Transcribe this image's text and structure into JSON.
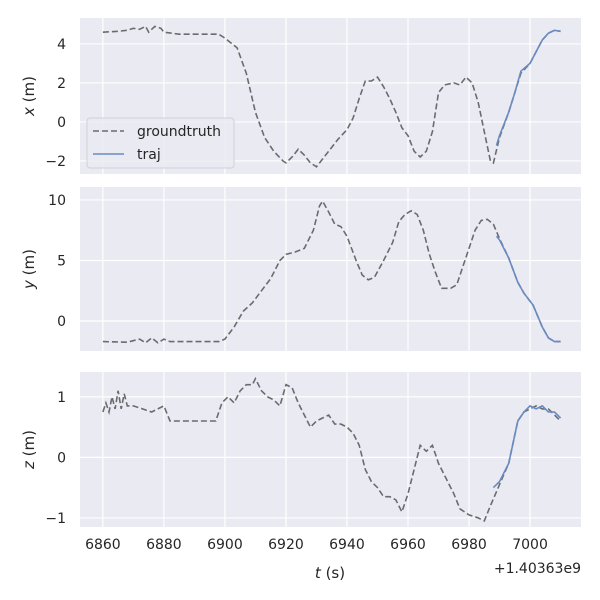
{
  "chart_data": {
    "type": "line",
    "x_offset_label": "+1.40363e9",
    "xlabel_var": "t",
    "xlabel_unit": " (s)",
    "xlim": [
      6852.5,
      7016.7
    ],
    "xticks": [
      6860,
      6880,
      6900,
      6920,
      6940,
      6960,
      6980,
      7000
    ],
    "grid": true,
    "legend": {
      "placement": "lower-left",
      "entries": [
        "groundtruth",
        "traj"
      ]
    },
    "colors": {
      "groundtruth": "#6b6b6f",
      "traj": "#6a8bc2",
      "background": "#eaeaf2",
      "grid": "#ffffff"
    },
    "panels": [
      {
        "ylabel_var": "x",
        "ylabel_unit": " (m)",
        "ylim": [
          -2.67,
          5.33
        ],
        "yticks": [
          -2,
          0,
          2,
          4
        ],
        "groundtruth": {
          "t": [
            6860,
            6865,
            6868,
            6870,
            6872,
            6874,
            6875,
            6877,
            6879,
            6880,
            6885,
            6890,
            6898,
            6900,
            6904,
            6907,
            6910,
            6913,
            6916,
            6919,
            6920,
            6922,
            6924,
            6926,
            6928,
            6930,
            6932,
            6934,
            6937,
            6940,
            6942,
            6944,
            6946,
            6948,
            6950,
            6952,
            6954,
            6956,
            6958,
            6960,
            6962,
            6964,
            6966,
            6968,
            6970,
            6972,
            6975,
            6977,
            6979,
            6981,
            6983,
            6985,
            6987,
            6988,
            6990,
            6993,
            6995,
            6997,
            7000,
            7002,
            7004,
            7006,
            7008,
            7010
          ],
          "v": [
            4.6,
            4.65,
            4.7,
            4.8,
            4.75,
            4.9,
            4.6,
            4.9,
            4.8,
            4.6,
            4.5,
            4.5,
            4.5,
            4.3,
            3.8,
            2.5,
            0.5,
            -0.8,
            -1.5,
            -2.0,
            -2.1,
            -1.8,
            -1.4,
            -1.7,
            -2.1,
            -2.3,
            -1.9,
            -1.5,
            -0.9,
            -0.4,
            0.2,
            1.2,
            2.1,
            2.1,
            2.3,
            1.8,
            1.2,
            0.5,
            -0.3,
            -0.7,
            -1.5,
            -1.8,
            -1.5,
            -0.5,
            1.5,
            1.9,
            2.0,
            1.9,
            2.3,
            2.0,
            1.0,
            -0.5,
            -2.0,
            -2.1,
            -0.8,
            0.5,
            1.5,
            2.5,
            3.0,
            3.6,
            4.2,
            4.55,
            4.7,
            4.65
          ]
        },
        "traj": {
          "t": [
            6989,
            6990,
            6993,
            6995,
            6997,
            7000,
            7002,
            7004,
            7006,
            7008,
            7010
          ],
          "v": [
            -1.2,
            -0.7,
            0.5,
            1.5,
            2.6,
            3.0,
            3.6,
            4.2,
            4.55,
            4.7,
            4.65
          ]
        }
      },
      {
        "ylabel_var": "y",
        "ylabel_unit": " (m)",
        "ylim": [
          -2.48,
          11.07
        ],
        "yticks": [
          0,
          5,
          10
        ],
        "groundtruth": {
          "t": [
            6860,
            6868,
            6872,
            6874,
            6876,
            6878,
            6880,
            6882,
            6890,
            6898,
            6900,
            6903,
            6906,
            6909,
            6912,
            6915,
            6918,
            6920,
            6923,
            6926,
            6929,
            6931,
            6932,
            6934,
            6936,
            6938,
            6940,
            6943,
            6945,
            6947,
            6949,
            6952,
            6955,
            6957,
            6959,
            6961,
            6963,
            6965,
            6967,
            6969,
            6971,
            6974,
            6976,
            6978,
            6980,
            6982,
            6984,
            6986,
            6988,
            6990,
            6993,
            6996,
            6998,
            7001,
            7004,
            7006,
            7008,
            7010
          ],
          "v": [
            -1.7,
            -1.75,
            -1.5,
            -1.8,
            -1.4,
            -1.8,
            -1.5,
            -1.7,
            -1.7,
            -1.7,
            -1.5,
            -0.5,
            0.8,
            1.5,
            2.5,
            3.5,
            5.0,
            5.5,
            5.7,
            6.0,
            7.5,
            9.5,
            9.9,
            9.0,
            8.0,
            7.8,
            7.0,
            5.0,
            3.8,
            3.4,
            3.6,
            5.0,
            6.5,
            8.2,
            8.8,
            9.1,
            8.8,
            7.5,
            5.5,
            4.0,
            2.7,
            2.7,
            3.0,
            4.5,
            6.0,
            7.5,
            8.3,
            8.4,
            8.0,
            6.8,
            5.2,
            3.2,
            2.3,
            1.3,
            -0.5,
            -1.4,
            -1.7,
            -1.7
          ]
        },
        "traj": {
          "t": [
            6989,
            6990,
            6993,
            6996,
            6998,
            7001,
            7004,
            7006,
            7008,
            7010
          ],
          "v": [
            7.0,
            6.7,
            5.2,
            3.2,
            2.3,
            1.3,
            -0.5,
            -1.4,
            -1.7,
            -1.7
          ]
        }
      },
      {
        "ylabel_var": "z",
        "ylabel_unit": " (m)",
        "ylim": [
          -1.15,
          1.41
        ],
        "yticks": [
          -1,
          0,
          1
        ],
        "groundtruth": {
          "t": [
            6860,
            6861,
            6862,
            6863,
            6864,
            6865,
            6866,
            6867,
            6868,
            6870,
            6873,
            6876,
            6878,
            6880,
            6882,
            6886,
            6890,
            6897,
            6899,
            6901,
            6903,
            6905,
            6907,
            6909,
            6910,
            6912,
            6914,
            6916,
            6918,
            6920,
            6922,
            6924,
            6926,
            6928,
            6930,
            6932,
            6934,
            6936,
            6938,
            6940,
            6942,
            6944,
            6946,
            6948,
            6950,
            6952,
            6954,
            6956,
            6958,
            6960,
            6962,
            6964,
            6966,
            6968,
            6970,
            6972,
            6975,
            6977,
            6980,
            6983,
            6985,
            6987,
            6990,
            6993,
            6996,
            6998,
            7000,
            7002,
            7004,
            7006,
            7008,
            7010
          ],
          "v": [
            0.75,
            0.9,
            0.75,
            1.0,
            0.8,
            1.1,
            0.8,
            1.05,
            0.85,
            0.85,
            0.8,
            0.75,
            0.8,
            0.85,
            0.6,
            0.6,
            0.6,
            0.6,
            0.9,
            1.0,
            0.9,
            1.1,
            1.2,
            1.2,
            1.3,
            1.1,
            1.0,
            0.95,
            0.85,
            1.2,
            1.15,
            0.9,
            0.7,
            0.5,
            0.6,
            0.65,
            0.7,
            0.55,
            0.55,
            0.5,
            0.4,
            0.2,
            -0.2,
            -0.4,
            -0.5,
            -0.65,
            -0.65,
            -0.7,
            -0.9,
            -0.6,
            -0.2,
            0.2,
            0.1,
            0.2,
            -0.1,
            -0.3,
            -0.6,
            -0.85,
            -0.95,
            -1.0,
            -1.05,
            -0.8,
            -0.45,
            -0.1,
            0.6,
            0.75,
            0.8,
            0.85,
            0.8,
            0.8,
            0.7,
            0.6
          ]
        },
        "traj": {
          "t": [
            6988,
            6990,
            6993,
            6996,
            6998,
            7000,
            7002,
            7004,
            7006,
            7008,
            7010
          ],
          "v": [
            -0.5,
            -0.4,
            -0.1,
            0.6,
            0.75,
            0.85,
            0.8,
            0.85,
            0.75,
            0.75,
            0.65
          ]
        }
      }
    ]
  }
}
